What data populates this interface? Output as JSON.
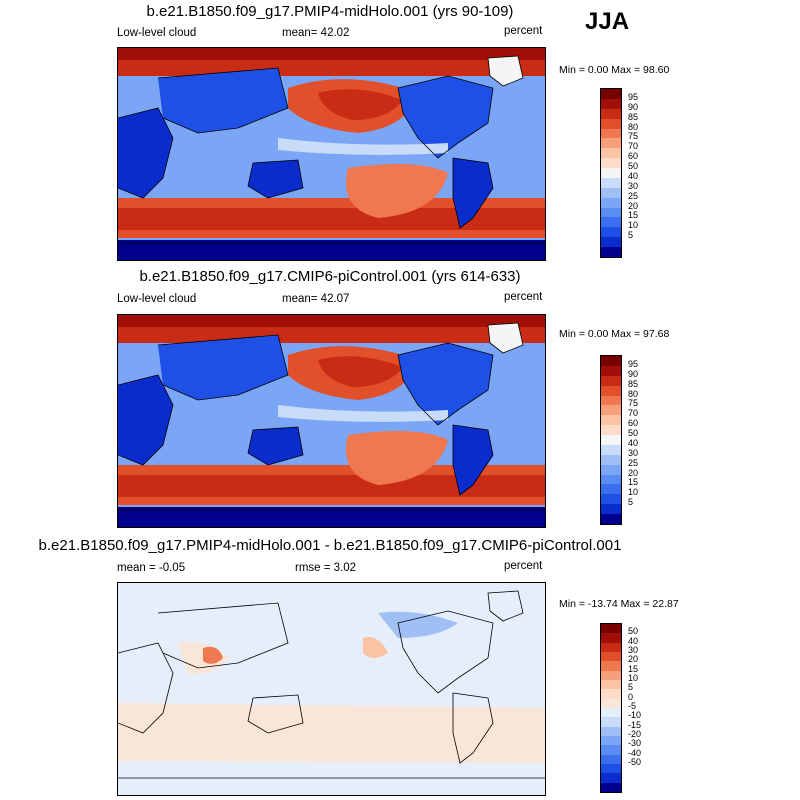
{
  "season": "JJA",
  "scale_colors": {
    "abs": [
      "#00008c",
      "#0a2ccc",
      "#1e50e6",
      "#3c6ef0",
      "#5a8cf5",
      "#7aa6f5",
      "#a0c0f5",
      "#c8dcfa",
      "#f5f5f5",
      "#fcdcc8",
      "#fac4a4",
      "#f5a07a",
      "#f07850",
      "#e1502a",
      "#c82c14",
      "#a01008",
      "#780000"
    ],
    "diff": [
      "#00008c",
      "#0a2ccc",
      "#1e50e6",
      "#3c6ef0",
      "#5a8cf5",
      "#7aa6f5",
      "#a0c0f5",
      "#c8dcfa",
      "#e6eefa",
      "#fae6d8",
      "#fcdcc8",
      "#fac4a4",
      "#f5a07a",
      "#f07850",
      "#e1502a",
      "#c82c14",
      "#a01008",
      "#780000"
    ]
  },
  "panels": [
    {
      "title": "b.e21.B1850.f09_g17.PMIP4-midHolo.001 (yrs 90-109)",
      "left_label": "Low-level cloud",
      "center_label": "mean=  42.02",
      "right_label": "percent",
      "minmax": "Min =   0.00 Max =  98.60",
      "colorbar_labels": [
        "95",
        "90",
        "85",
        "80",
        "75",
        "70",
        "60",
        "50",
        "40",
        "30",
        "25",
        "20",
        "15",
        "10",
        "5"
      ]
    },
    {
      "title": "b.e21.B1850.f09_g17.CMIP6-piControl.001 (yrs 614-633)",
      "left_label": "Low-level cloud",
      "center_label": "mean=  42.07",
      "right_label": "percent",
      "minmax": "Min =   0.00 Max =  97.68",
      "colorbar_labels": [
        "95",
        "90",
        "85",
        "80",
        "75",
        "70",
        "60",
        "50",
        "40",
        "30",
        "25",
        "20",
        "15",
        "10",
        "5"
      ]
    },
    {
      "title": "b.e21.B1850.f09_g17.PMIP4-midHolo.001 - b.e21.B1850.f09_g17.CMIP6-piControl.001",
      "left_label": "mean =  -0.05",
      "center_label": "rmse =   3.02",
      "right_label": "percent",
      "minmax": "Min = -13.74 Max =  22.87",
      "colorbar_labels": [
        "50",
        "40",
        "30",
        "20",
        "15",
        "10",
        "5",
        "0",
        "-5",
        "-10",
        "-15",
        "-20",
        "-30",
        "-40",
        "-50"
      ]
    }
  ],
  "chart_data": [
    {
      "type": "heatmap",
      "title": "b.e21.B1850.f09_g17.PMIP4-midHolo.001 (yrs 90-109)",
      "variable": "Low-level cloud",
      "units": "percent",
      "season": "JJA",
      "mean": 42.02,
      "min": 0.0,
      "max": 98.6,
      "levels": [
        5,
        10,
        15,
        20,
        25,
        30,
        40,
        50,
        60,
        70,
        75,
        80,
        85,
        90,
        95
      ],
      "projection": "cylindrical equidistant, Pacific-centered"
    },
    {
      "type": "heatmap",
      "title": "b.e21.B1850.f09_g17.CMIP6-piControl.001 (yrs 614-633)",
      "variable": "Low-level cloud",
      "units": "percent",
      "season": "JJA",
      "mean": 42.07,
      "min": 0.0,
      "max": 97.68,
      "levels": [
        5,
        10,
        15,
        20,
        25,
        30,
        40,
        50,
        60,
        70,
        75,
        80,
        85,
        90,
        95
      ],
      "projection": "cylindrical equidistant, Pacific-centered"
    },
    {
      "type": "heatmap",
      "title": "b.e21.B1850.f09_g17.PMIP4-midHolo.001 - b.e21.B1850.f09_g17.CMIP6-piControl.001",
      "units": "percent",
      "season": "JJA",
      "mean": -0.05,
      "rmse": 3.02,
      "min": -13.74,
      "max": 22.87,
      "levels": [
        -50,
        -40,
        -30,
        -20,
        -15,
        -10,
        -5,
        0,
        5,
        10,
        15,
        20,
        30,
        40,
        50
      ],
      "projection": "cylindrical equidistant, Pacific-centered"
    }
  ]
}
